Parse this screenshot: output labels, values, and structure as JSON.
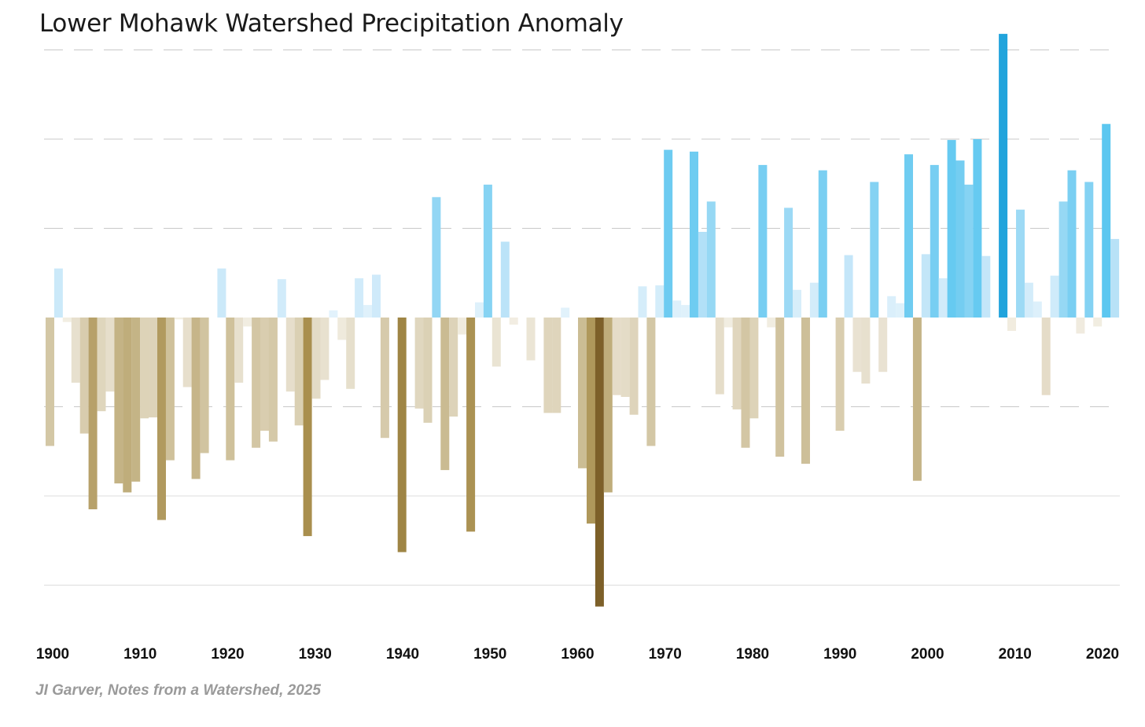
{
  "chart_data": {
    "type": "bar",
    "title": "Lower Mohawk Watershed Precipitation Anomaly",
    "xlabel": "",
    "ylabel": "",
    "y_units_note": "gridline steps (no y tick labels shown)",
    "ylim": [
      -3.4,
      3.3
    ],
    "grid": true,
    "start_year": 1900,
    "end_year": 2024,
    "values": [
      -1.44,
      0.55,
      -0.05,
      -0.73,
      -1.3,
      -2.15,
      -1.05,
      -0.83,
      -1.86,
      -1.96,
      -1.84,
      -1.13,
      -1.12,
      -2.27,
      -1.6,
      -0.02,
      -0.78,
      -1.81,
      -1.52,
      0.0,
      0.55,
      -1.6,
      -0.73,
      -0.1,
      -1.46,
      -1.27,
      -1.39,
      0.43,
      -0.83,
      -1.21,
      -2.45,
      -0.91,
      -0.7,
      0.08,
      -0.25,
      -0.8,
      0.44,
      0.14,
      0.48,
      -1.35,
      0.0,
      -2.63,
      0.0,
      -1.02,
      -1.18,
      1.35,
      -1.71,
      -1.11,
      -0.19,
      -2.4,
      0.17,
      1.49,
      -0.55,
      0.85,
      -0.08,
      0.0,
      -0.48,
      0.0,
      -1.07,
      -1.07,
      0.11,
      0.0,
      -1.69,
      -2.31,
      -3.24,
      -1.96,
      -0.87,
      -0.89,
      -1.09,
      0.35,
      -1.44,
      0.36,
      1.88,
      0.19,
      0.14,
      1.86,
      0.96,
      1.3,
      -0.86,
      -0.11,
      -1.03,
      -1.46,
      -1.13,
      1.71,
      -0.11,
      -1.56,
      1.23,
      0.31,
      -1.64,
      0.39,
      1.65,
      0.0,
      -1.27,
      0.7,
      -0.61,
      -0.74,
      1.52,
      -0.61,
      0.24,
      0.16,
      1.83,
      -1.83,
      0.71,
      1.71,
      0.44,
      1.99,
      1.76,
      1.49,
      2.0,
      0.69,
      0.0,
      3.18,
      -0.15,
      1.21,
      0.39,
      0.18,
      -0.87,
      0.47,
      1.3,
      1.65,
      -0.18,
      1.52,
      -0.1,
      2.17,
      0.88
    ],
    "xticks": [
      "1900",
      "1910",
      "1920",
      "1930",
      "1940",
      "1950",
      "1960",
      "1970",
      "1980",
      "1990",
      "2000",
      "2010",
      "2020"
    ],
    "colors": {
      "wet": [
        "#e6f4fc",
        "#bfe4f8",
        "#7dd0f2",
        "#4ec3ef",
        "#20a3db"
      ],
      "dry": [
        "#f3efe4",
        "#e6decb",
        "#cdbf98",
        "#a88e4c",
        "#7a5c26"
      ],
      "grid": "#c8c8c8"
    },
    "credit": "JI Garver, Notes from a Watershed, 2025"
  }
}
